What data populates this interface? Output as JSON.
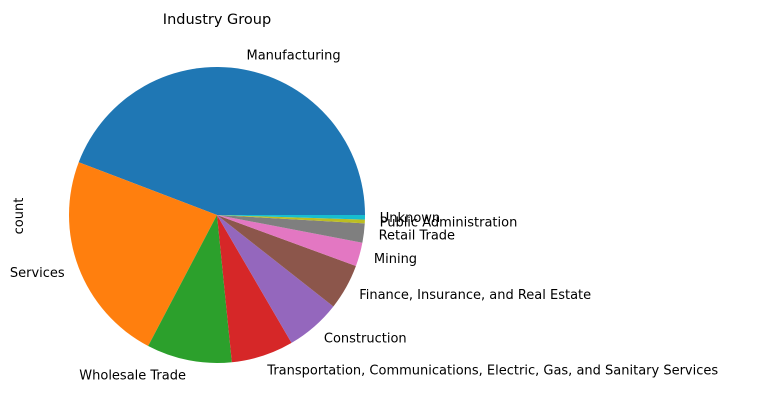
{
  "chart_data": {
    "type": "pie",
    "title": "Industry Group",
    "ylabel": "count",
    "start_angle_deg": 0,
    "direction": "counterclockwise",
    "slices": [
      {
        "label": "Manufacturing",
        "value": 44.2,
        "color": "#1f77b4"
      },
      {
        "label": "Services",
        "value": 23.1,
        "color": "#ff7f0e"
      },
      {
        "label": "Wholesale Trade",
        "value": 9.3,
        "color": "#2ca02c"
      },
      {
        "label": "Transportation, Communications, Electric, Gas, and Sanitary Services",
        "value": 6.8,
        "color": "#d62728"
      },
      {
        "label": "Construction",
        "value": 6.0,
        "color": "#9467bd"
      },
      {
        "label": "Finance, Insurance, and Real Estate",
        "value": 5.0,
        "color": "#8c564b"
      },
      {
        "label": "Mining",
        "value": 2.6,
        "color": "#e377c2"
      },
      {
        "label": "Retail Trade",
        "value": 2.1,
        "color": "#7f7f7f"
      },
      {
        "label": "Public Administration",
        "value": 0.4,
        "color": "#bcbd22"
      },
      {
        "label": "Unknown",
        "value": 0.5,
        "color": "#17becf"
      }
    ]
  }
}
